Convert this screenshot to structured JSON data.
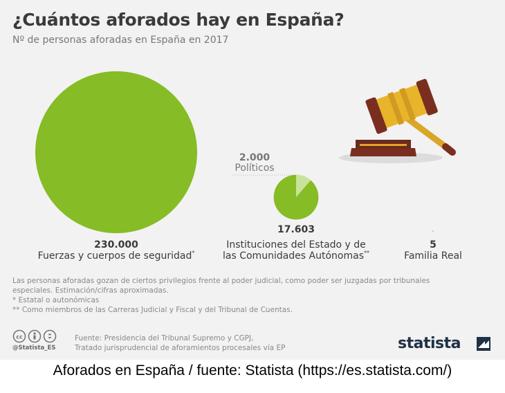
{
  "header": {
    "title": "¿Cuántos aforados hay en España?",
    "subtitle": "Nº de personas aforadas en España en 2017"
  },
  "chart_data": {
    "type": "bubble",
    "items": [
      {
        "value": 230000,
        "value_label": "230.000",
        "label_lines": [
          "Fuerzas y cuerpos de seguridad"
        ],
        "marker": "*",
        "color": "#86bc25"
      },
      {
        "value": 17603,
        "value_label": "17.603",
        "label_lines": [
          "Instituciones del Estado y de",
          "las Comunidades Autónomas"
        ],
        "marker": "**",
        "color": "#86bc25",
        "sub_value": 2000,
        "sub_value_label": "2.000",
        "sub_label": "Políticos",
        "sub_color": "#c9e39a"
      },
      {
        "value": 5,
        "value_label": "5",
        "label_lines": [
          "Familia Real"
        ],
        "marker": "",
        "color": "#86bc25"
      }
    ]
  },
  "notes": [
    "Las personas aforadas gozan de ciertos privilegios frente al poder judicial, como poder ser juzgadas por tribunales",
    "especiales. Estimación/cifras aproximadas.",
    "*   Estatal o autonómicas",
    "** Como miembros de las Carreras Judicial y Fiscal y del Tribunal de Cuentas."
  ],
  "footer": {
    "handle": "@Statista_ES",
    "source_lines": [
      "Fuente: Presidencia del Tribunal Supremo y CGPJ,",
      "Tratado jurisprudencial de aforamientos procesales vía EP"
    ],
    "brand": "statista"
  },
  "caption": "Aforados en España / fuente: Statista (https://es.statista.com/)"
}
